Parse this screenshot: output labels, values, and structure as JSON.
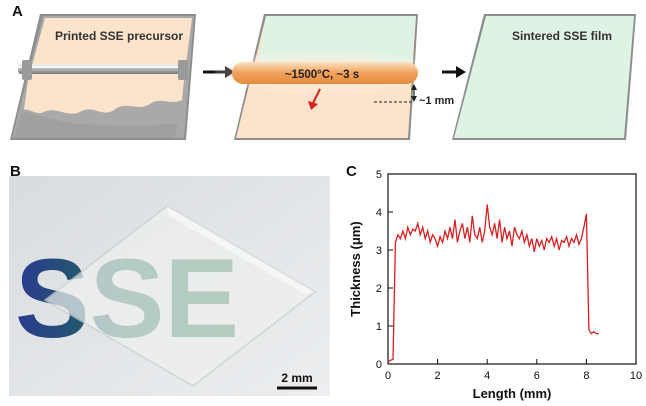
{
  "panel_a": {
    "label": "A",
    "step1_label": "Printed SSE precursor",
    "heater_label": "~1500°C, ~3 s",
    "gap_label": "~1 mm",
    "step3_label": "Sintered SSE film"
  },
  "panel_b": {
    "label": "B",
    "scale_bar_label": "2 mm",
    "logo_text": "SSE"
  },
  "colors": {
    "precursor": "#fbe3cc",
    "sintered": "#dff3e4",
    "heater": "#f2a25a",
    "curve": "#d7201f",
    "slab_edge": "#8a8a8a"
  },
  "panel_c": {
    "label": "C"
  },
  "chart_data": {
    "type": "line",
    "xlabel": "Length (mm)",
    "ylabel": "Thickness (μm)",
    "xlim": [
      0,
      10
    ],
    "ylim": [
      0,
      5
    ],
    "xticks": [
      "0",
      "2",
      "4",
      "6",
      "8",
      "10"
    ],
    "yticks": [
      "0",
      "1",
      "2",
      "3",
      "4",
      "5"
    ],
    "series": [
      {
        "x": [
          0.0,
          0.1,
          0.2,
          0.3,
          0.4,
          0.5,
          0.6,
          0.7,
          0.8,
          0.9,
          1.0,
          1.1,
          1.2,
          1.3,
          1.4,
          1.5,
          1.6,
          1.7,
          1.8,
          1.9,
          2.0,
          2.1,
          2.2,
          2.3,
          2.4,
          2.5,
          2.6,
          2.7,
          2.8,
          2.9,
          3.0,
          3.1,
          3.2,
          3.3,
          3.4,
          3.5,
          3.6,
          3.7,
          3.8,
          3.9,
          4.0,
          4.1,
          4.2,
          4.3,
          4.4,
          4.5,
          4.6,
          4.7,
          4.8,
          4.9,
          5.0,
          5.1,
          5.2,
          5.3,
          5.4,
          5.5,
          5.6,
          5.7,
          5.8,
          5.9,
          6.0,
          6.1,
          6.2,
          6.3,
          6.4,
          6.5,
          6.6,
          6.7,
          6.8,
          6.9,
          7.0,
          7.1,
          7.2,
          7.3,
          7.4,
          7.5,
          7.6,
          7.7,
          7.8,
          7.9,
          8.0,
          8.1,
          8.2,
          8.3,
          8.4,
          8.5
        ],
        "y": [
          0.05,
          0.1,
          0.12,
          3.2,
          3.4,
          3.3,
          3.5,
          3.3,
          3.6,
          3.4,
          3.55,
          3.5,
          3.7,
          3.4,
          3.6,
          3.3,
          3.5,
          3.2,
          3.4,
          3.3,
          3.1,
          3.35,
          3.2,
          3.5,
          3.3,
          3.6,
          3.3,
          3.8,
          3.2,
          3.5,
          3.7,
          3.3,
          3.6,
          3.2,
          3.9,
          3.4,
          3.3,
          3.6,
          3.2,
          3.5,
          4.2,
          3.6,
          3.4,
          3.7,
          3.3,
          3.8,
          3.2,
          3.6,
          3.3,
          3.5,
          3.1,
          3.6,
          3.4,
          3.3,
          3.5,
          3.2,
          3.4,
          3.1,
          3.3,
          2.95,
          3.3,
          3.1,
          3.25,
          3.0,
          3.3,
          3.2,
          3.35,
          3.1,
          3.3,
          3.0,
          3.25,
          3.2,
          3.35,
          3.1,
          3.3,
          3.2,
          3.4,
          3.15,
          3.3,
          3.6,
          3.95,
          0.9,
          0.8,
          0.85,
          0.8,
          0.8
        ]
      }
    ]
  }
}
